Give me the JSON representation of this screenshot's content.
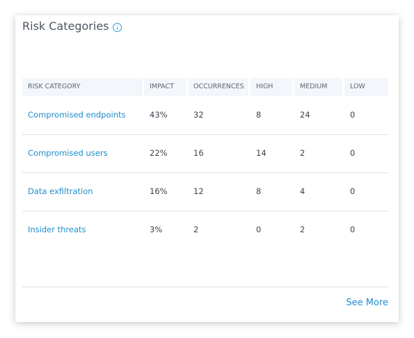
{
  "header": {
    "title": "Risk Categories"
  },
  "table": {
    "columns": [
      "RISK CATEGORY",
      "IMPACT",
      "OCCURRENCES",
      "HIGH",
      "MEDIUM",
      "LOW"
    ],
    "rows": [
      [
        "Compromised endpoints",
        "43%",
        32,
        8,
        24,
        0
      ],
      [
        "Compromised users",
        "22%",
        16,
        14,
        2,
        0
      ],
      [
        "Data exfiltration",
        "16%",
        12,
        8,
        4,
        0
      ],
      [
        "Insider threats",
        "3%",
        2,
        0,
        2,
        0
      ]
    ]
  },
  "footer": {
    "link": "See More"
  }
}
